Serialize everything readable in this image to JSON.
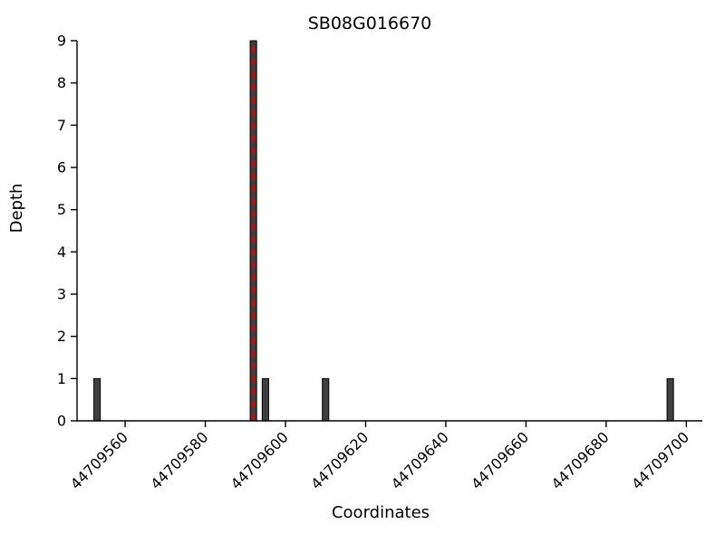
{
  "figure": {
    "background": "#ffffff"
  },
  "chart_data": {
    "type": "bar",
    "title": "SB08G016670",
    "xlabel": "Coordinates",
    "ylabel": "Depth",
    "xlim": [
      44709548,
      44709704
    ],
    "ylim": [
      0,
      9
    ],
    "x_ticks": [
      44709560,
      44709580,
      44709600,
      44709620,
      44709640,
      44709660,
      44709680,
      44709700
    ],
    "y_ticks": [
      0,
      1,
      2,
      3,
      4,
      5,
      6,
      7,
      8,
      9
    ],
    "grid": false,
    "legend": "none",
    "bar_width_units": 1.6,
    "bar_color": "#3f3f3f",
    "bar_edge_color": "#000000",
    "bars": [
      {
        "x": 44709553,
        "depth": 1
      },
      {
        "x": 44709592,
        "depth": 9
      },
      {
        "x": 44709595,
        "depth": 1
      },
      {
        "x": 44709610,
        "depth": 1
      },
      {
        "x": 44709696,
        "depth": 1
      }
    ],
    "marker_line": {
      "x": 44709592,
      "color": "#e00000",
      "style": "dashed",
      "span": [
        0,
        9
      ]
    }
  }
}
